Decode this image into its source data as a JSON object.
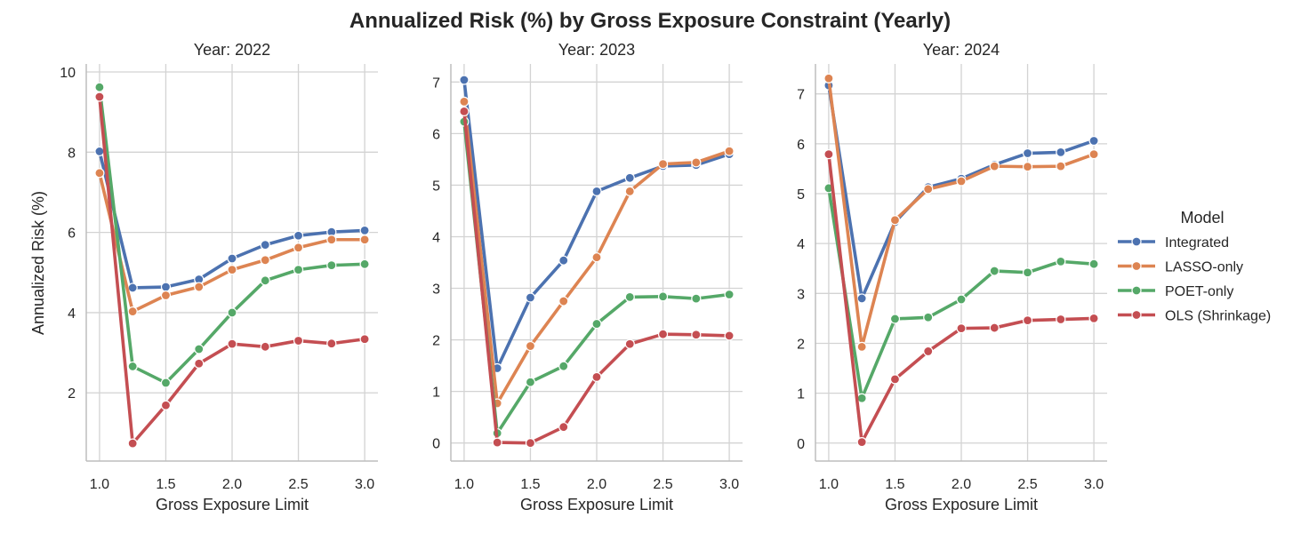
{
  "chart_data": {
    "type": "line",
    "title": "Annualized Risk (%) by Gross Exposure Constraint (Yearly)",
    "xlabel": "Gross Exposure Limit",
    "ylabel": "Annualized Risk (%)",
    "legend": {
      "title": "Model",
      "placement": "right",
      "entries": [
        "Integrated",
        "LASSO-only",
        "POET-only",
        "OLS (Shrinkage)"
      ]
    },
    "colors": {
      "Integrated": "#4c72b0",
      "LASSO-only": "#dd8452",
      "POET-only": "#55a868",
      "OLS (Shrinkage)": "#c44e52"
    },
    "grid": true,
    "x": [
      1.0,
      1.25,
      1.5,
      1.75,
      2.0,
      2.25,
      2.5,
      2.75,
      3.0
    ],
    "panels": [
      {
        "title": "Year: 2022",
        "xlim": [
          0.9,
          3.1
        ],
        "ylim": [
          0.3,
          10.2
        ],
        "xticks": [
          1.0,
          1.5,
          2.0,
          2.5,
          3.0
        ],
        "xtick_labels": [
          "1.0",
          "1.5",
          "2.0",
          "2.5",
          "3.0"
        ],
        "yticks": [
          2,
          4,
          6,
          8,
          10
        ],
        "ytick_labels": [
          "2",
          "4",
          "6",
          "8",
          "10"
        ],
        "series": [
          {
            "name": "Integrated",
            "values": [
              8.02,
              4.62,
              4.64,
              4.83,
              5.35,
              5.69,
              5.92,
              6.01,
              6.05
            ]
          },
          {
            "name": "LASSO-only",
            "values": [
              7.48,
              4.03,
              4.43,
              4.64,
              5.07,
              5.31,
              5.62,
              5.82,
              5.82
            ]
          },
          {
            "name": "POET-only",
            "values": [
              9.62,
              2.66,
              2.25,
              3.09,
              4.0,
              4.8,
              5.07,
              5.18,
              5.21
            ]
          },
          {
            "name": "OLS (Shrinkage)",
            "values": [
              9.38,
              0.74,
              1.69,
              2.73,
              3.22,
              3.15,
              3.3,
              3.23,
              3.34
            ]
          }
        ]
      },
      {
        "title": "Year: 2023",
        "xlim": [
          0.9,
          3.1
        ],
        "ylim": [
          -0.35,
          7.35
        ],
        "xticks": [
          1.0,
          1.5,
          2.0,
          2.5,
          3.0
        ],
        "xtick_labels": [
          "1.0",
          "1.5",
          "2.0",
          "2.5",
          "3.0"
        ],
        "yticks": [
          0,
          1,
          2,
          3,
          4,
          5,
          6,
          7
        ],
        "ytick_labels": [
          "0",
          "1",
          "2",
          "3",
          "4",
          "5",
          "6",
          "7"
        ],
        "series": [
          {
            "name": "Integrated",
            "values": [
              7.04,
              1.45,
              2.82,
              3.54,
              4.88,
              5.14,
              5.37,
              5.39,
              5.6
            ]
          },
          {
            "name": "LASSO-only",
            "values": [
              6.62,
              0.77,
              1.88,
              2.75,
              3.6,
              4.88,
              5.41,
              5.44,
              5.66
            ]
          },
          {
            "name": "POET-only",
            "values": [
              6.23,
              0.19,
              1.18,
              1.49,
              2.31,
              2.83,
              2.84,
              2.8,
              2.88
            ]
          },
          {
            "name": "OLS (Shrinkage)",
            "values": [
              6.43,
              0.01,
              0.0,
              0.31,
              1.28,
              1.92,
              2.11,
              2.1,
              2.08
            ]
          }
        ]
      },
      {
        "title": "Year: 2024",
        "xlim": [
          0.9,
          3.1
        ],
        "ylim": [
          -0.36,
          7.6
        ],
        "xticks": [
          1.0,
          1.5,
          2.0,
          2.5,
          3.0
        ],
        "xtick_labels": [
          "1.0",
          "1.5",
          "2.0",
          "2.5",
          "3.0"
        ],
        "yticks": [
          0,
          1,
          2,
          3,
          4,
          5,
          6,
          7
        ],
        "ytick_labels": [
          "0",
          "1",
          "2",
          "3",
          "4",
          "5",
          "6",
          "7"
        ],
        "series": [
          {
            "name": "Integrated",
            "values": [
              7.17,
              2.9,
              4.43,
              5.13,
              5.3,
              5.58,
              5.81,
              5.83,
              6.06
            ]
          },
          {
            "name": "LASSO-only",
            "values": [
              7.31,
              1.93,
              4.47,
              5.09,
              5.25,
              5.55,
              5.54,
              5.55,
              5.79
            ]
          },
          {
            "name": "POET-only",
            "values": [
              5.11,
              0.9,
              2.49,
              2.52,
              2.88,
              3.45,
              3.42,
              3.64,
              3.59
            ]
          },
          {
            "name": "OLS (Shrinkage)",
            "values": [
              5.79,
              0.02,
              1.28,
              1.84,
              2.3,
              2.31,
              2.46,
              2.48,
              2.5
            ]
          }
        ]
      }
    ]
  }
}
